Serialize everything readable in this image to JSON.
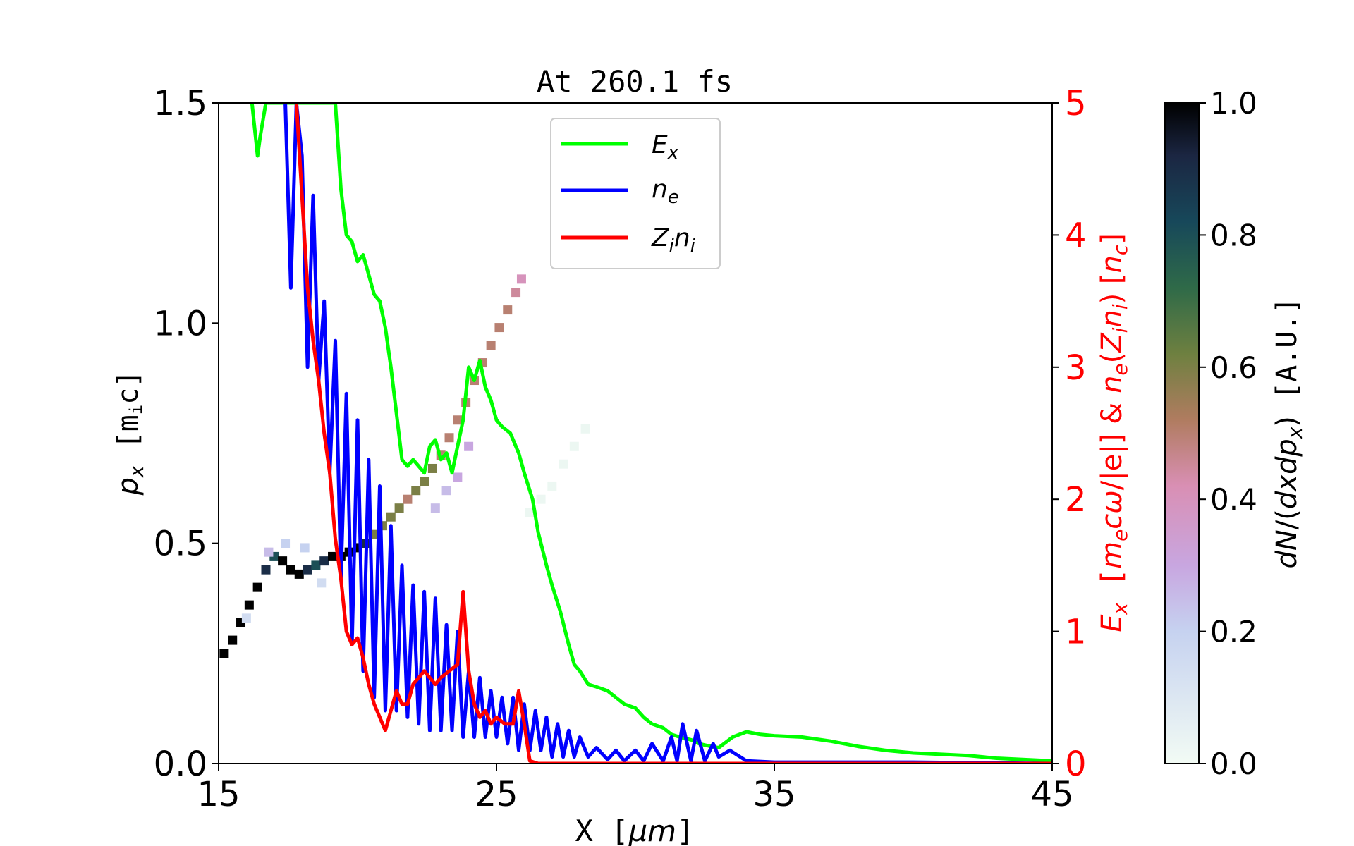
{
  "chart_data": {
    "type": "line",
    "title": "At 260.1 fs",
    "xlabel": "X [μm]",
    "ylabel": "p_x [m_i c]",
    "y2label": "E_x [m_e c ω/|e|] & n_e(Z_i n_i) [n_c]",
    "colorbar_label": "dN/(dx dp_x) [A.U.]",
    "xlim": [
      15,
      45
    ],
    "ylim": [
      0,
      1.5
    ],
    "y2lim": [
      0,
      5
    ],
    "colorbar_lim": [
      0,
      1
    ],
    "xticks": [
      "15",
      "25",
      "35",
      "45"
    ],
    "yticks": [
      "0.0",
      "0.5",
      "1.0",
      "1.5"
    ],
    "y2ticks": [
      "0",
      "1",
      "2",
      "3",
      "4",
      "5"
    ],
    "colorbar_ticks": [
      "0.0",
      "0.2",
      "0.4",
      "0.6",
      "0.8",
      "1.0"
    ],
    "legend": {
      "placement": "upper center",
      "entries": [
        {
          "label": "E_x",
          "color": "#00ff00"
        },
        {
          "label": "n_e",
          "color": "#0000ff"
        },
        {
          "label": "Z_i n_i",
          "color": "#ff0000"
        }
      ]
    },
    "grid": false,
    "colors": {
      "Ex": "#00ff00",
      "ne": "#0000ff",
      "Zini": "#ff0000",
      "right_axis": "#ff0000"
    },
    "series": [
      {
        "name": "E_x",
        "axis": "right",
        "points": [
          [
            16.2,
            5.0
          ],
          [
            16.4,
            4.6
          ],
          [
            16.5,
            4.75
          ],
          [
            16.7,
            5.0
          ],
          [
            19.2,
            5.0
          ],
          [
            19.4,
            4.35
          ],
          [
            19.6,
            4.0
          ],
          [
            19.8,
            3.95
          ],
          [
            20.0,
            3.8
          ],
          [
            20.2,
            3.85
          ],
          [
            20.4,
            3.7
          ],
          [
            20.6,
            3.55
          ],
          [
            20.8,
            3.5
          ],
          [
            21.0,
            3.3
          ],
          [
            21.2,
            3.0
          ],
          [
            21.4,
            2.65
          ],
          [
            21.6,
            2.3
          ],
          [
            21.8,
            2.25
          ],
          [
            22.0,
            2.3
          ],
          [
            22.2,
            2.25
          ],
          [
            22.4,
            2.2
          ],
          [
            22.6,
            2.4
          ],
          [
            22.8,
            2.45
          ],
          [
            23.0,
            2.3
          ],
          [
            23.2,
            2.35
          ],
          [
            23.4,
            2.2
          ],
          [
            23.6,
            2.4
          ],
          [
            23.8,
            2.6
          ],
          [
            24.0,
            3.0
          ],
          [
            24.2,
            2.9
          ],
          [
            24.4,
            3.05
          ],
          [
            24.6,
            2.85
          ],
          [
            24.8,
            2.75
          ],
          [
            25.0,
            2.6
          ],
          [
            25.2,
            2.55
          ],
          [
            25.5,
            2.5
          ],
          [
            25.8,
            2.35
          ],
          [
            26.0,
            2.2
          ],
          [
            26.3,
            2.0
          ],
          [
            26.5,
            1.75
          ],
          [
            26.8,
            1.5
          ],
          [
            27.0,
            1.35
          ],
          [
            27.3,
            1.15
          ],
          [
            27.6,
            0.9
          ],
          [
            27.8,
            0.75
          ],
          [
            28.0,
            0.7
          ],
          [
            28.3,
            0.6
          ],
          [
            28.6,
            0.58
          ],
          [
            29.0,
            0.55
          ],
          [
            29.3,
            0.5
          ],
          [
            29.6,
            0.45
          ],
          [
            30.0,
            0.42
          ],
          [
            30.3,
            0.35
          ],
          [
            30.6,
            0.3
          ],
          [
            31.0,
            0.27
          ],
          [
            31.3,
            0.22
          ],
          [
            31.6,
            0.2
          ],
          [
            32.0,
            0.18
          ],
          [
            32.3,
            0.15
          ],
          [
            32.7,
            0.13
          ],
          [
            33.0,
            0.12
          ],
          [
            33.5,
            0.2
          ],
          [
            34.0,
            0.24
          ],
          [
            34.5,
            0.22
          ],
          [
            35.0,
            0.21
          ],
          [
            36.0,
            0.2
          ],
          [
            37.0,
            0.17
          ],
          [
            38.0,
            0.13
          ],
          [
            39.0,
            0.1
          ],
          [
            40.0,
            0.08
          ],
          [
            41.0,
            0.07
          ],
          [
            42.0,
            0.06
          ],
          [
            43.0,
            0.04
          ],
          [
            44.0,
            0.03
          ],
          [
            45.0,
            0.02
          ]
        ]
      },
      {
        "name": "n_e",
        "axis": "right",
        "points": [
          [
            17.4,
            5.0
          ],
          [
            17.6,
            3.6
          ],
          [
            17.8,
            5.0
          ],
          [
            18.0,
            4.6
          ],
          [
            18.2,
            3.0
          ],
          [
            18.4,
            4.3
          ],
          [
            18.6,
            2.9
          ],
          [
            18.8,
            3.5
          ],
          [
            19.0,
            2.2
          ],
          [
            19.2,
            3.2
          ],
          [
            19.4,
            1.4
          ],
          [
            19.6,
            2.8
          ],
          [
            19.8,
            0.9
          ],
          [
            20.0,
            2.6
          ],
          [
            20.2,
            0.7
          ],
          [
            20.4,
            2.3
          ],
          [
            20.6,
            0.5
          ],
          [
            20.8,
            2.1
          ],
          [
            21.0,
            0.4
          ],
          [
            21.2,
            1.8
          ],
          [
            21.4,
            0.4
          ],
          [
            21.6,
            1.5
          ],
          [
            21.8,
            0.35
          ],
          [
            22.0,
            1.35
          ],
          [
            22.2,
            0.3
          ],
          [
            22.4,
            1.3
          ],
          [
            22.6,
            0.25
          ],
          [
            22.8,
            1.25
          ],
          [
            23.0,
            0.25
          ],
          [
            23.2,
            1.05
          ],
          [
            23.4,
            0.25
          ],
          [
            23.6,
            1.0
          ],
          [
            23.8,
            0.2
          ],
          [
            24.0,
            0.7
          ],
          [
            24.2,
            0.2
          ],
          [
            24.4,
            0.65
          ],
          [
            24.6,
            0.2
          ],
          [
            24.8,
            0.55
          ],
          [
            25.0,
            0.2
          ],
          [
            25.2,
            0.5
          ],
          [
            25.4,
            0.15
          ],
          [
            25.6,
            0.5
          ],
          [
            25.8,
            0.1
          ],
          [
            26.0,
            0.45
          ],
          [
            26.2,
            0.1
          ],
          [
            26.4,
            0.4
          ],
          [
            26.6,
            0.1
          ],
          [
            26.8,
            0.35
          ],
          [
            27.0,
            0.05
          ],
          [
            27.2,
            0.3
          ],
          [
            27.4,
            0.05
          ],
          [
            27.6,
            0.25
          ],
          [
            27.8,
            0.05
          ],
          [
            28.0,
            0.2
          ],
          [
            28.3,
            0.05
          ],
          [
            28.6,
            0.12
          ],
          [
            29.0,
            0.03
          ],
          [
            29.3,
            0.1
          ],
          [
            29.6,
            0.02
          ],
          [
            30.0,
            0.1
          ],
          [
            30.3,
            0.02
          ],
          [
            30.6,
            0.15
          ],
          [
            31.0,
            0.02
          ],
          [
            31.3,
            0.2
          ],
          [
            31.5,
            0.02
          ],
          [
            31.7,
            0.3
          ],
          [
            32.0,
            0.02
          ],
          [
            32.2,
            0.25
          ],
          [
            32.5,
            0.02
          ],
          [
            32.8,
            0.15
          ],
          [
            33.0,
            0.05
          ],
          [
            33.4,
            0.1
          ],
          [
            34.0,
            0.02
          ],
          [
            35.0,
            0.01
          ],
          [
            40.0,
            0.01
          ],
          [
            45.0,
            0.0
          ]
        ]
      },
      {
        "name": "Z_i n_i",
        "axis": "right",
        "points": [
          [
            17.8,
            5.0
          ],
          [
            18.0,
            4.3
          ],
          [
            18.2,
            3.6
          ],
          [
            18.4,
            3.2
          ],
          [
            18.6,
            2.9
          ],
          [
            18.8,
            2.5
          ],
          [
            19.0,
            2.2
          ],
          [
            19.2,
            1.7
          ],
          [
            19.4,
            1.4
          ],
          [
            19.6,
            1.0
          ],
          [
            19.8,
            0.9
          ],
          [
            20.0,
            0.95
          ],
          [
            20.2,
            0.8
          ],
          [
            20.4,
            0.6
          ],
          [
            20.6,
            0.45
          ],
          [
            20.8,
            0.35
          ],
          [
            21.0,
            0.25
          ],
          [
            21.2,
            0.4
          ],
          [
            21.4,
            0.55
          ],
          [
            21.6,
            0.45
          ],
          [
            21.8,
            0.45
          ],
          [
            22.0,
            0.6
          ],
          [
            22.2,
            0.65
          ],
          [
            22.4,
            0.7
          ],
          [
            22.6,
            0.65
          ],
          [
            22.8,
            0.6
          ],
          [
            23.0,
            0.65
          ],
          [
            23.3,
            0.7
          ],
          [
            23.6,
            0.75
          ],
          [
            23.8,
            1.3
          ],
          [
            24.0,
            0.7
          ],
          [
            24.2,
            0.45
          ],
          [
            24.4,
            0.35
          ],
          [
            24.6,
            0.4
          ],
          [
            24.8,
            0.3
          ],
          [
            25.0,
            0.35
          ],
          [
            25.3,
            0.3
          ],
          [
            25.6,
            0.3
          ],
          [
            25.8,
            0.55
          ],
          [
            26.0,
            0.3
          ],
          [
            26.2,
            0.02
          ],
          [
            26.5,
            0.0
          ],
          [
            45.0,
            0.0
          ]
        ]
      }
    ],
    "phase_space": {
      "cells": [
        [
          15.2,
          0.25,
          1.0
        ],
        [
          15.5,
          0.28,
          1.0
        ],
        [
          15.8,
          0.32,
          1.0
        ],
        [
          16.1,
          0.36,
          1.0
        ],
        [
          16.4,
          0.4,
          1.0
        ],
        [
          16.7,
          0.44,
          0.9
        ],
        [
          17.0,
          0.47,
          0.8
        ],
        [
          17.3,
          0.46,
          1.0
        ],
        [
          17.6,
          0.44,
          1.0
        ],
        [
          17.9,
          0.43,
          1.0
        ],
        [
          18.2,
          0.44,
          0.9
        ],
        [
          18.5,
          0.45,
          0.8
        ],
        [
          18.8,
          0.46,
          0.9
        ],
        [
          19.1,
          0.47,
          1.0
        ],
        [
          19.4,
          0.47,
          1.0
        ],
        [
          19.7,
          0.48,
          1.0
        ],
        [
          20.0,
          0.49,
          1.0
        ],
        [
          20.3,
          0.5,
          0.9
        ],
        [
          20.6,
          0.52,
          0.6
        ],
        [
          20.9,
          0.54,
          0.6
        ],
        [
          21.2,
          0.56,
          0.6
        ],
        [
          21.5,
          0.58,
          0.6
        ],
        [
          21.8,
          0.6,
          0.5
        ],
        [
          22.1,
          0.62,
          0.6
        ],
        [
          22.4,
          0.64,
          0.6
        ],
        [
          22.7,
          0.67,
          0.6
        ],
        [
          23.0,
          0.7,
          0.5
        ],
        [
          23.3,
          0.74,
          0.5
        ],
        [
          23.6,
          0.78,
          0.5
        ],
        [
          23.9,
          0.82,
          0.5
        ],
        [
          24.2,
          0.87,
          0.5
        ],
        [
          24.5,
          0.91,
          0.5
        ],
        [
          24.8,
          0.95,
          0.5
        ],
        [
          25.1,
          0.99,
          0.5
        ],
        [
          25.4,
          1.03,
          0.5
        ],
        [
          25.7,
          1.07,
          0.45
        ],
        [
          25.9,
          1.1,
          0.4
        ],
        [
          16.8,
          0.48,
          0.25
        ],
        [
          17.4,
          0.5,
          0.2
        ],
        [
          18.1,
          0.49,
          0.2
        ],
        [
          18.7,
          0.41,
          0.15
        ],
        [
          16.0,
          0.33,
          0.15
        ],
        [
          22.8,
          0.58,
          0.25
        ],
        [
          23.2,
          0.62,
          0.25
        ],
        [
          23.6,
          0.65,
          0.3
        ],
        [
          24.0,
          0.72,
          0.3
        ]
      ],
      "faint_cells": [
        [
          26.2,
          0.57,
          0.08
        ],
        [
          26.6,
          0.6,
          0.06
        ],
        [
          27.0,
          0.63,
          0.05
        ],
        [
          27.4,
          0.68,
          0.05
        ],
        [
          27.8,
          0.72,
          0.04
        ],
        [
          28.2,
          0.76,
          0.04
        ]
      ]
    }
  }
}
